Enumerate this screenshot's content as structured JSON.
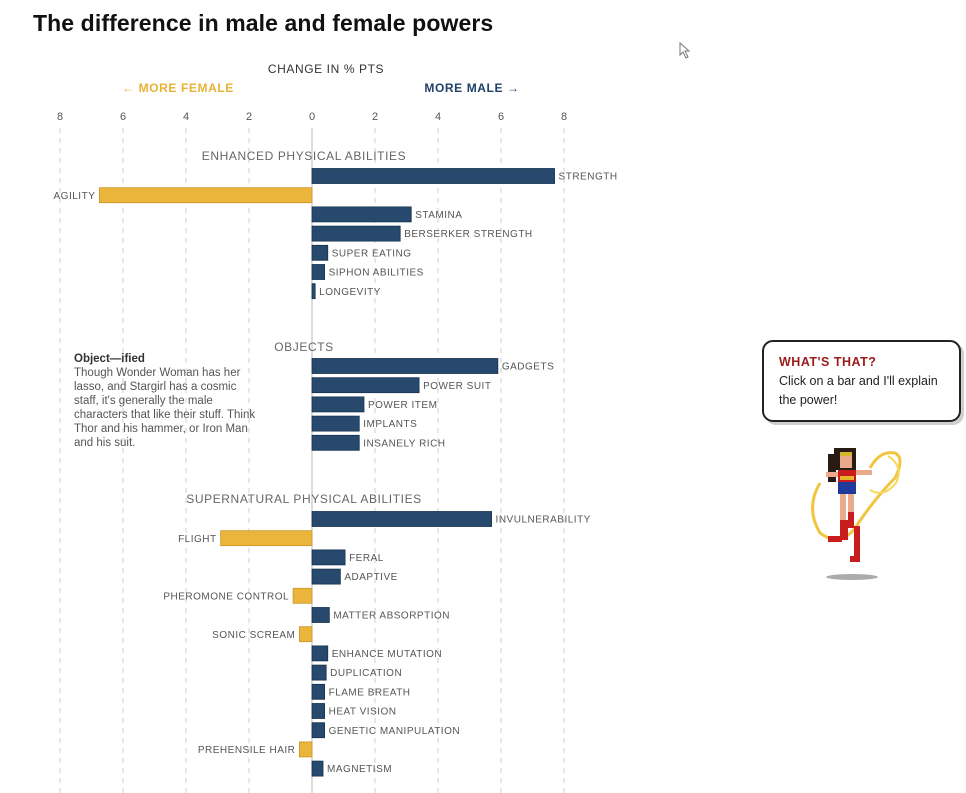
{
  "page": {
    "title": "The difference in male and female powers"
  },
  "chart_data": {
    "type": "bar",
    "orientation": "horizontal",
    "title": "The difference in male and female powers",
    "xlabel": "CHANGE IN % PTS",
    "left_direction_label": "← MORE FEMALE",
    "right_direction_label": "MORE MALE →",
    "xlim": [
      -8,
      8
    ],
    "ticks": [
      -8,
      -6,
      -4,
      -2,
      0,
      2,
      4,
      6,
      8
    ],
    "tick_labels": [
      "8",
      "6",
      "4",
      "2",
      "0",
      "2",
      "4",
      "6",
      "8"
    ],
    "colors": {
      "male": "#26496d",
      "female": "#ebb43a"
    },
    "groups": [
      {
        "name": "ENHANCED PHYSICAL ABILITIES",
        "bars": [
          {
            "label": "STRENGTH",
            "value": 7.7
          },
          {
            "label": "AGILITY",
            "value": -6.75
          },
          {
            "label": "STAMINA",
            "value": 3.15
          },
          {
            "label": "BERSERKER STRENGTH",
            "value": 2.8
          },
          {
            "label": "SUPER EATING",
            "value": 0.5
          },
          {
            "label": "SIPHON ABILITIES",
            "value": 0.4
          },
          {
            "label": "LONGEVITY",
            "value": 0.1
          }
        ]
      },
      {
        "name": "OBJECTS",
        "bars": [
          {
            "label": "GADGETS",
            "value": 5.9
          },
          {
            "label": "POWER SUIT",
            "value": 3.4
          },
          {
            "label": "POWER ITEM",
            "value": 1.65
          },
          {
            "label": "IMPLANTS",
            "value": 1.5
          },
          {
            "label": "INSANELY RICH",
            "value": 1.5
          }
        ]
      },
      {
        "name": "SUPERNATURAL PHYSICAL ABILITIES",
        "bars": [
          {
            "label": "INVULNERABILITY",
            "value": 5.7
          },
          {
            "label": "FLIGHT",
            "value": -2.9
          },
          {
            "label": "FERAL",
            "value": 1.05
          },
          {
            "label": "ADAPTIVE",
            "value": 0.9
          },
          {
            "label": "PHEROMONE CONTROL",
            "value": -0.6
          },
          {
            "label": "MATTER ABSORPTION",
            "value": 0.55
          },
          {
            "label": "SONIC SCREAM",
            "value": -0.4
          },
          {
            "label": "ENHANCE MUTATION",
            "value": 0.5
          },
          {
            "label": "DUPLICATION",
            "value": 0.45
          },
          {
            "label": "FLAME BREATH",
            "value": 0.4
          },
          {
            "label": "HEAT VISION",
            "value": 0.4
          },
          {
            "label": "GENETIC MANIPULATION",
            "value": 0.4
          },
          {
            "label": "PREHENSILE HAIR",
            "value": -0.4
          },
          {
            "label": "MAGNETISM",
            "value": 0.35
          }
        ]
      }
    ]
  },
  "annotation": {
    "heading": "Object—ified",
    "text": "Though Wonder Woman has her lasso, and Stargirl has a cosmic staff, it's generally the male characters that like their stuff. Think Thor and his hammer, or Iron Man and his suit."
  },
  "speech_bubble": {
    "title": "WHAT'S THAT?",
    "text": "Click on a bar and I'll explain the power!"
  }
}
